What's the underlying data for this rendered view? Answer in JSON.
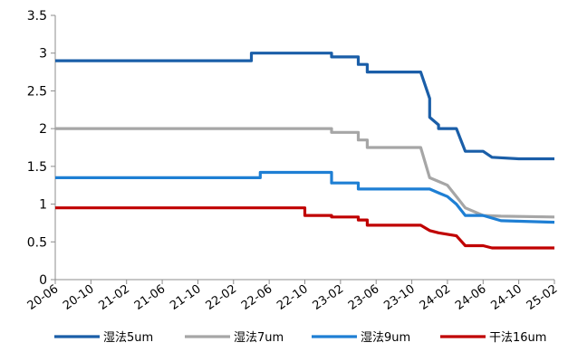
{
  "chart_data": {
    "type": "line",
    "title": "",
    "xlabel": "",
    "ylabel": "",
    "ylim": [
      0,
      3.5
    ],
    "yticks": [
      "0",
      "0.5",
      "1",
      "1.5",
      "2",
      "2.5",
      "3",
      "3.5"
    ],
    "xlim": [
      "2020-06",
      "2025-02"
    ],
    "xtick_labels": [
      "20-06",
      "20-10",
      "21-02",
      "21-06",
      "21-10",
      "22-02",
      "22-06",
      "22-10",
      "23-02",
      "23-06",
      "23-10",
      "24-02",
      "24-06",
      "24-10",
      "25-02"
    ],
    "grid": false,
    "legend_position": "bottom",
    "series": [
      {
        "name": "湿法5um",
        "color": "#1a5ea8",
        "points": [
          [
            "2020-06",
            2.9
          ],
          [
            "2022-04",
            2.9
          ],
          [
            "2022-04",
            3.0
          ],
          [
            "2023-01",
            3.0
          ],
          [
            "2023-01",
            2.95
          ],
          [
            "2023-04",
            2.95
          ],
          [
            "2023-04",
            2.85
          ],
          [
            "2023-05",
            2.85
          ],
          [
            "2023-05",
            2.75
          ],
          [
            "2023-11",
            2.75
          ],
          [
            "2023-12",
            2.4
          ],
          [
            "2023-12",
            2.15
          ],
          [
            "2024-01",
            2.05
          ],
          [
            "2024-01",
            2.0
          ],
          [
            "2024-03",
            2.0
          ],
          [
            "2024-04",
            1.7
          ],
          [
            "2024-06",
            1.7
          ],
          [
            "2024-07",
            1.62
          ],
          [
            "2024-10",
            1.6
          ],
          [
            "2025-02",
            1.6
          ]
        ]
      },
      {
        "name": "湿法7um",
        "color": "#a6a6a6",
        "points": [
          [
            "2020-06",
            2.0
          ],
          [
            "2023-01",
            2.0
          ],
          [
            "2023-01",
            1.95
          ],
          [
            "2023-04",
            1.95
          ],
          [
            "2023-04",
            1.85
          ],
          [
            "2023-05",
            1.85
          ],
          [
            "2023-05",
            1.75
          ],
          [
            "2023-11",
            1.75
          ],
          [
            "2023-12",
            1.35
          ],
          [
            "2024-01",
            1.3
          ],
          [
            "2024-02",
            1.25
          ],
          [
            "2024-03",
            1.1
          ],
          [
            "2024-04",
            0.95
          ],
          [
            "2024-06",
            0.85
          ],
          [
            "2024-08",
            0.84
          ],
          [
            "2025-02",
            0.83
          ]
        ]
      },
      {
        "name": "湿法9um",
        "color": "#1e7fd4",
        "points": [
          [
            "2020-06",
            1.35
          ],
          [
            "2022-05",
            1.35
          ],
          [
            "2022-05",
            1.42
          ],
          [
            "2023-01",
            1.42
          ],
          [
            "2023-01",
            1.28
          ],
          [
            "2023-04",
            1.28
          ],
          [
            "2023-04",
            1.2
          ],
          [
            "2023-12",
            1.2
          ],
          [
            "2024-01",
            1.15
          ],
          [
            "2024-02",
            1.1
          ],
          [
            "2024-03",
            1.0
          ],
          [
            "2024-04",
            0.85
          ],
          [
            "2024-06",
            0.85
          ],
          [
            "2024-08",
            0.78
          ],
          [
            "2025-02",
            0.76
          ]
        ]
      },
      {
        "name": "干法16um",
        "color": "#c00000",
        "points": [
          [
            "2020-06",
            0.95
          ],
          [
            "2022-10",
            0.95
          ],
          [
            "2022-10",
            0.85
          ],
          [
            "2023-01",
            0.85
          ],
          [
            "2023-01",
            0.83
          ],
          [
            "2023-04",
            0.83
          ],
          [
            "2023-04",
            0.79
          ],
          [
            "2023-05",
            0.79
          ],
          [
            "2023-05",
            0.72
          ],
          [
            "2023-11",
            0.72
          ],
          [
            "2023-12",
            0.65
          ],
          [
            "2024-01",
            0.62
          ],
          [
            "2024-03",
            0.58
          ],
          [
            "2024-04",
            0.45
          ],
          [
            "2024-06",
            0.45
          ],
          [
            "2024-07",
            0.42
          ],
          [
            "2025-02",
            0.42
          ]
        ]
      }
    ]
  }
}
